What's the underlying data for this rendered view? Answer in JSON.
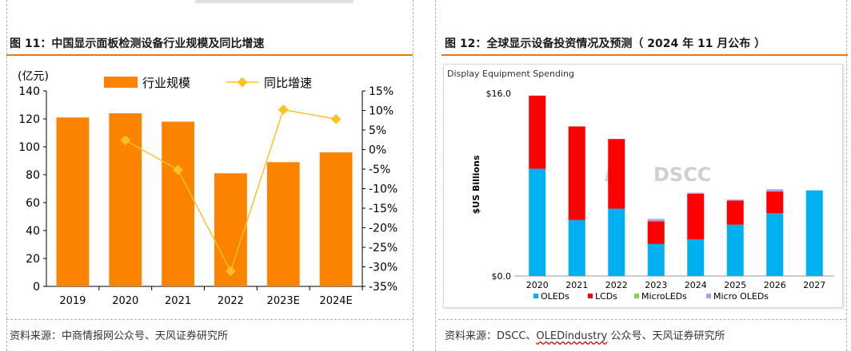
{
  "left": {
    "title": "图 11：中国显示面板检测设备行业规模及同比增速",
    "source": "资料来源：中商情报网公众号、天风证券研究所"
  },
  "right": {
    "title": "图 12：全球显示设备投资情况及预测（ 2024 年 11 月公布 ）",
    "source_prefix": "资料来源：DSCC、",
    "source_wavy": "OLEDindustry",
    "source_suffix": " 公众号、天风证券研究所"
  },
  "colors": {
    "orange_bar": "#fb8300",
    "yellow_line": "#fcc123",
    "accent_rule": "#e8790a",
    "oled": "#00b0f0",
    "lcd": "#ff0000",
    "microled": "#92d050",
    "micro_oled": "#b4a0e0"
  },
  "chart_data": [
    {
      "type": "bar",
      "title": "",
      "unit_label": "(亿元)",
      "categories": [
        "2019",
        "2020",
        "2021",
        "2022",
        "2023E",
        "2024E"
      ],
      "series": [
        {
          "name": "行业规模",
          "kind": "bar",
          "axis": "left",
          "values": [
            121,
            124,
            118,
            81,
            89,
            96
          ]
        },
        {
          "name": "同比增速",
          "kind": "line",
          "axis": "right",
          "values": [
            null,
            2.4,
            -5.2,
            -31.1,
            10.2,
            7.8
          ]
        }
      ],
      "ylim": [
        0,
        140
      ],
      "yticks": [
        0,
        20,
        40,
        60,
        80,
        100,
        120,
        140
      ],
      "y2lim": [
        -35,
        15
      ],
      "y2ticks": [
        "15%",
        "10%",
        "5%",
        "0%",
        "-5%",
        "-10%",
        "-15%",
        "-20%",
        "-25%",
        "-30%",
        "-35%"
      ],
      "legend_position": "top",
      "grid": false
    },
    {
      "type": "bar",
      "stacked": true,
      "title": "Display Equipment Spending",
      "ylabel": "$US Billions",
      "watermark": "DSCC",
      "categories": [
        "2020",
        "2021",
        "2022",
        "2023",
        "2024",
        "2025",
        "2026",
        "2027"
      ],
      "series": [
        {
          "name": "OLEDs",
          "values": [
            9.4,
            4.9,
            5.9,
            2.8,
            3.2,
            4.5,
            5.5,
            7.5
          ]
        },
        {
          "name": "LCDs",
          "values": [
            6.4,
            8.2,
            6.1,
            2.0,
            4.0,
            2.1,
            1.9,
            0
          ]
        },
        {
          "name": "MicroLEDs",
          "values": [
            0,
            0,
            0,
            0,
            0,
            0,
            0,
            0
          ]
        },
        {
          "name": "Micro OLEDs",
          "values": [
            0,
            0,
            0,
            0.2,
            0.1,
            0.1,
            0.2,
            0
          ]
        }
      ],
      "ylim": [
        0,
        16
      ],
      "ytick_labels": [
        "$0.0",
        "$16.0"
      ],
      "legend_position": "bottom",
      "grid": false
    }
  ]
}
